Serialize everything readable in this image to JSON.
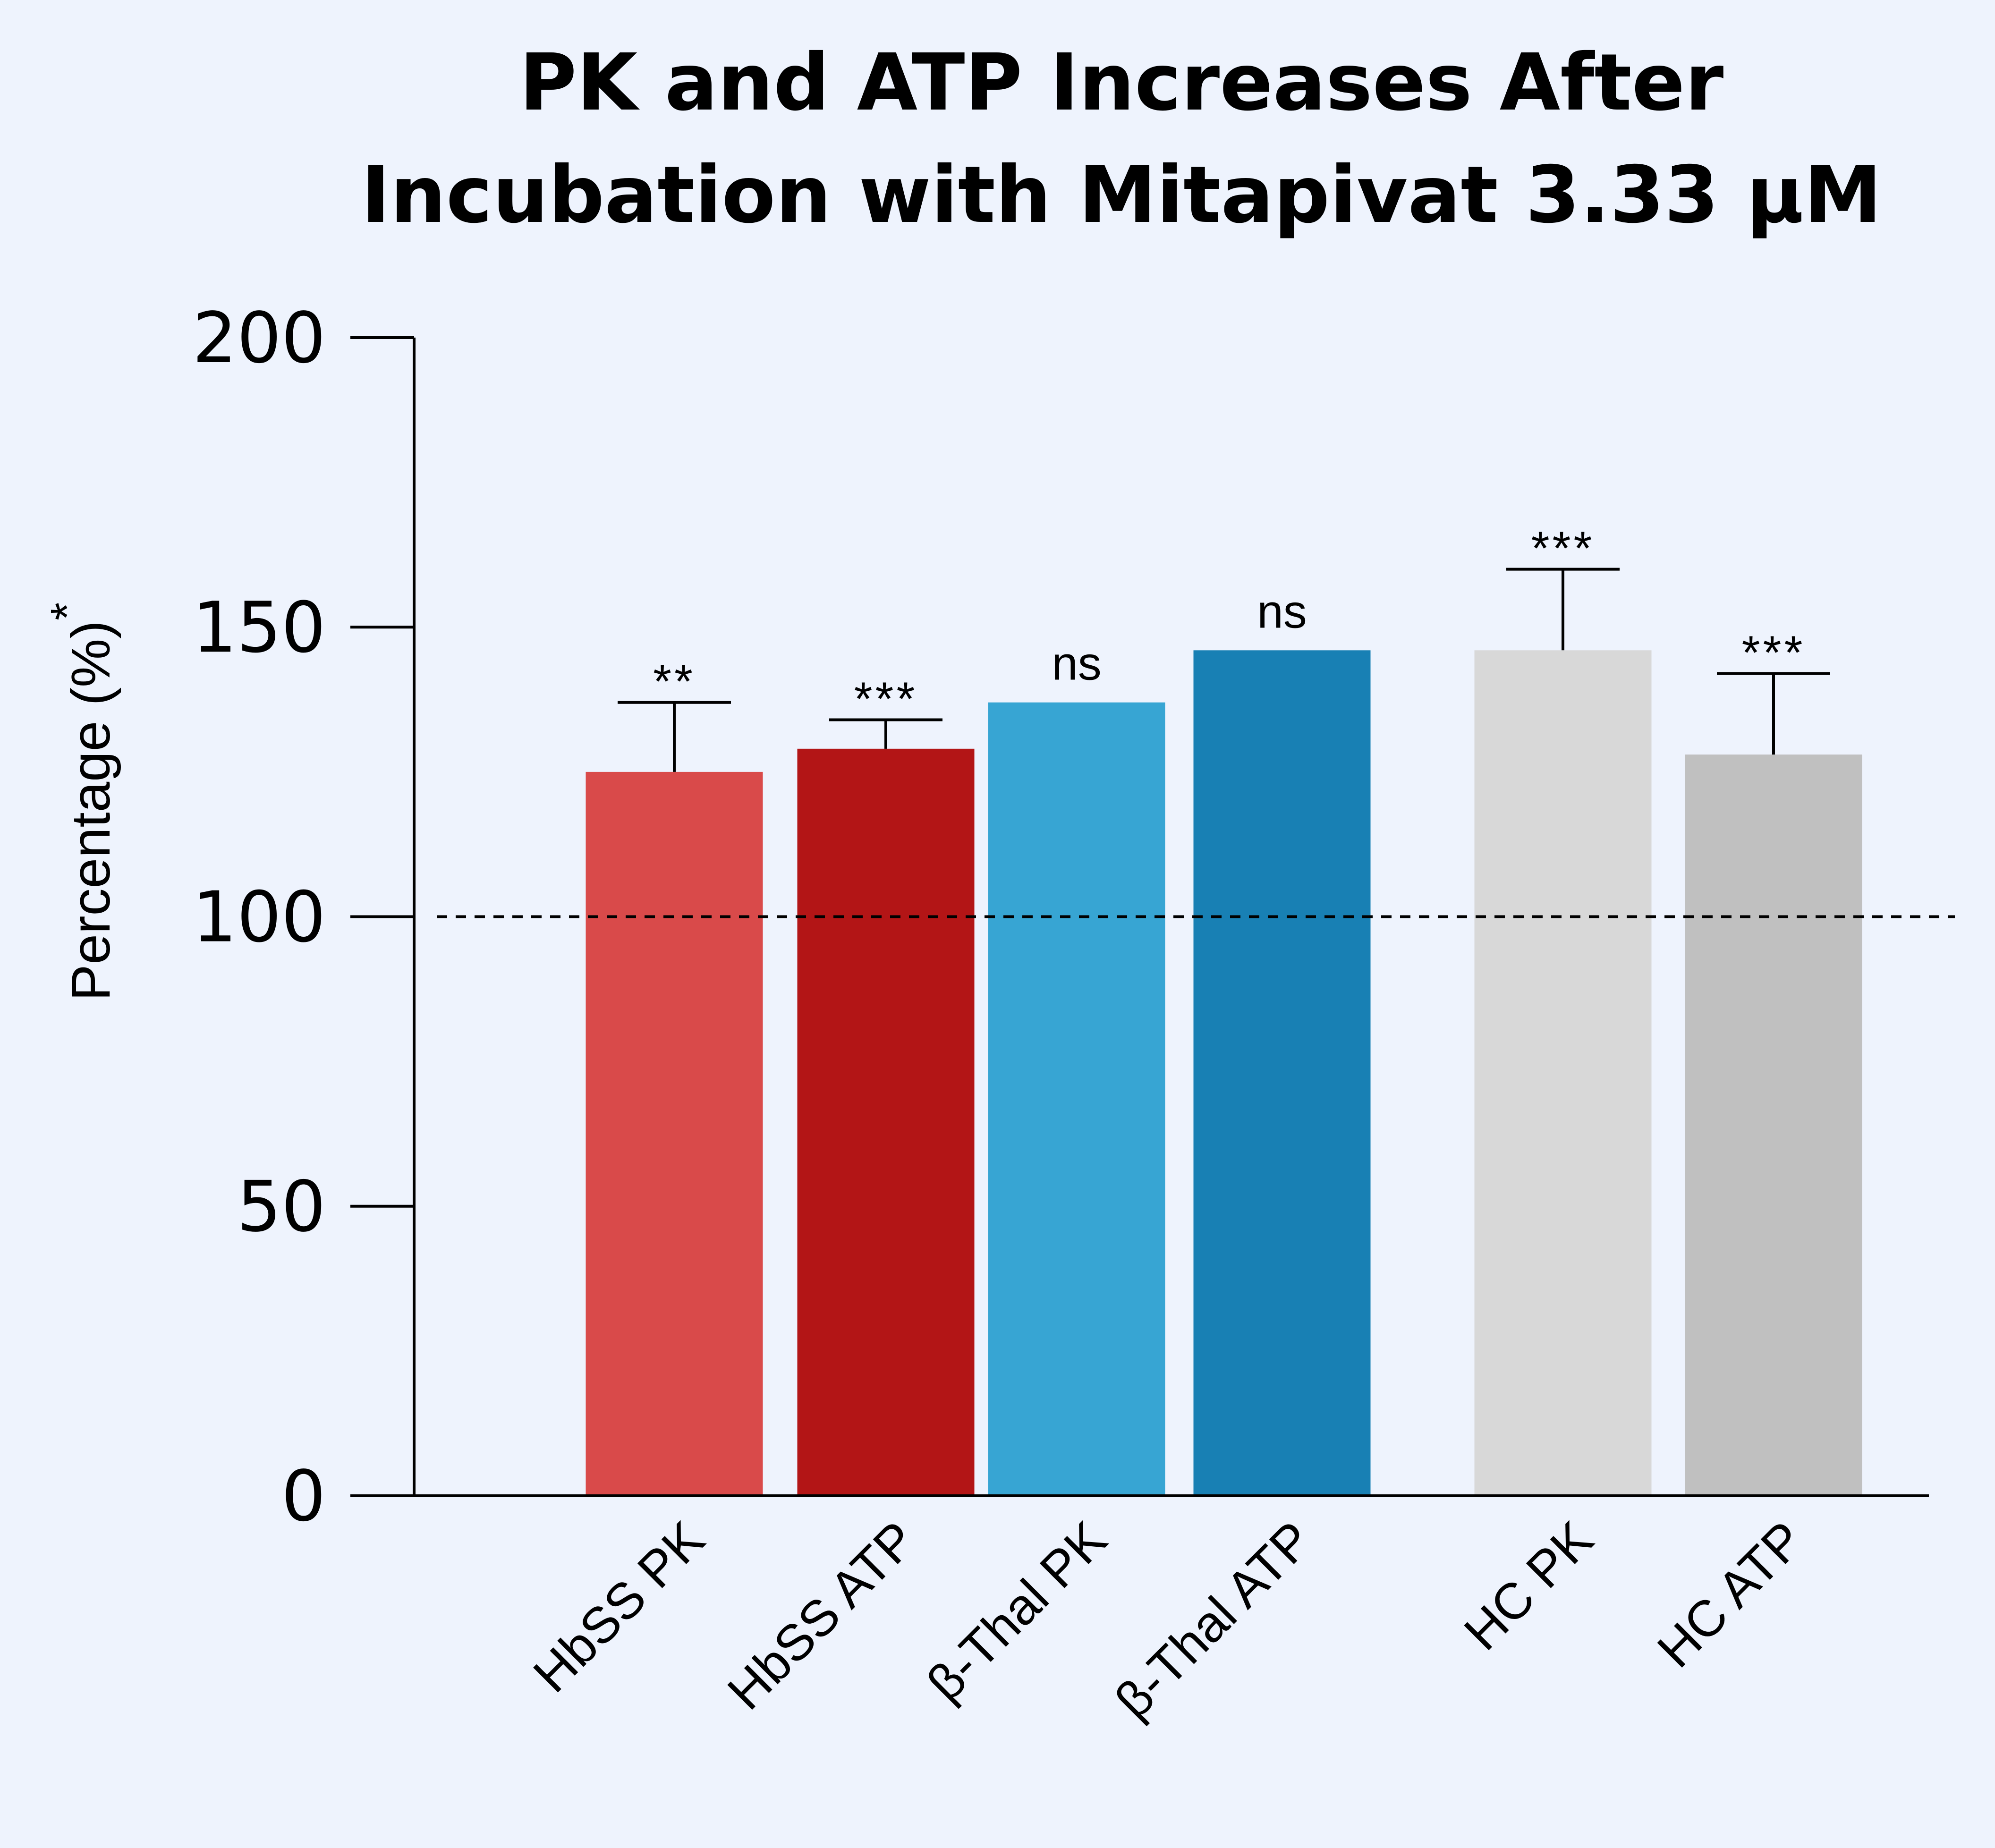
{
  "chart_data": {
    "type": "bar",
    "title": [
      "PK and ATP Increases After",
      "Incubation with Mitapivat 3.33 µM"
    ],
    "xlabel": "",
    "ylabel": "Percentage (%)",
    "ylabel_superscript": "*",
    "ylim": [
      0,
      200
    ],
    "yticks": [
      "0",
      "50",
      "100",
      "150",
      "200"
    ],
    "reference_line": 100,
    "grid": false,
    "categories": [
      "HbSS PK",
      "HbSS ATP",
      "β-Thal PK",
      "β-Thal ATP",
      "HC PK",
      "HC ATP"
    ],
    "values": [
      125,
      129,
      137,
      146,
      146,
      128
    ],
    "error_upper": [
      12,
      5,
      null,
      null,
      14,
      14
    ],
    "significance": [
      "**",
      "***",
      "ns",
      "ns",
      "***",
      "***"
    ],
    "colors": [
      "#d94a4a",
      "#b31516",
      "#37a5d3",
      "#1880b4",
      "#d8d8d8",
      "#c0c0c0"
    ]
  }
}
